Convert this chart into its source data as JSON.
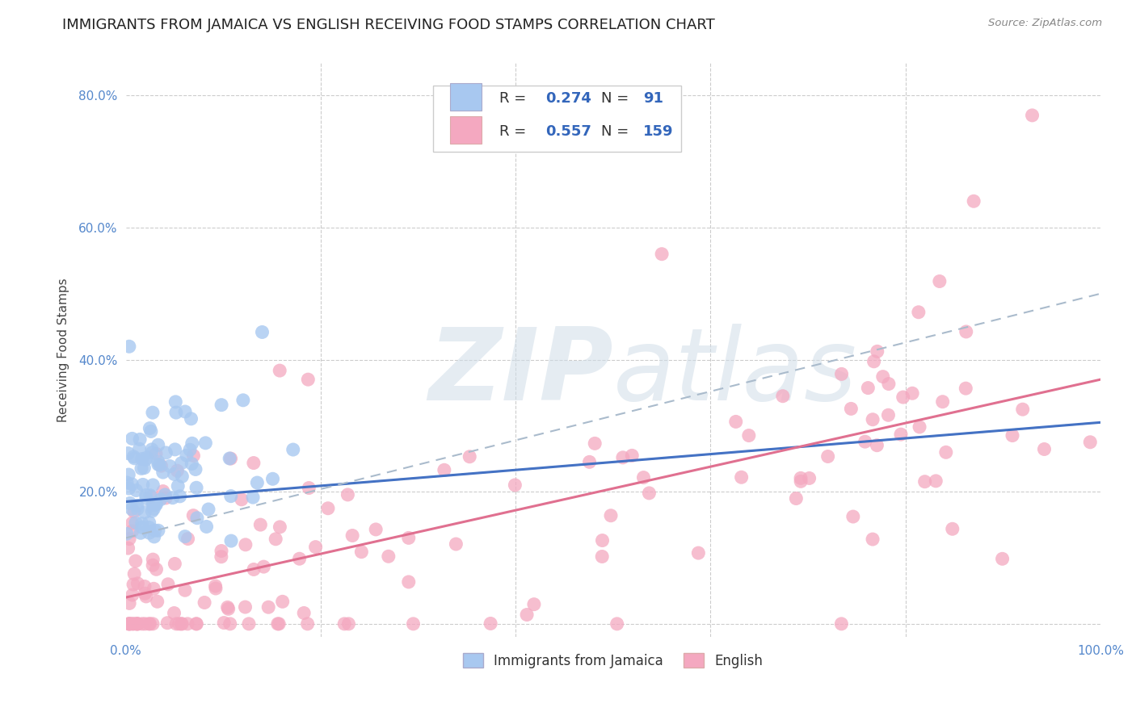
{
  "title": "IMMIGRANTS FROM JAMAICA VS ENGLISH RECEIVING FOOD STAMPS CORRELATION CHART",
  "source": "Source: ZipAtlas.com",
  "ylabel": "Receiving Food Stamps",
  "xlim": [
    0.0,
    1.0
  ],
  "ylim": [
    -0.02,
    0.85
  ],
  "xticks": [
    0.0,
    0.2,
    0.4,
    0.6,
    0.8,
    1.0
  ],
  "xticklabels": [
    "0.0%",
    "",
    "",
    "",
    "",
    "100.0%"
  ],
  "yticks": [
    0.0,
    0.2,
    0.4,
    0.6,
    0.8
  ],
  "yticklabels": [
    "",
    "20.0%",
    "40.0%",
    "60.0%",
    "80.0%"
  ],
  "legend_labels": [
    "Immigrants from Jamaica",
    "English"
  ],
  "r_jamaica": 0.274,
  "n_jamaica": 91,
  "r_english": 0.557,
  "n_english": 159,
  "blue_scatter_color": "#A8C8F0",
  "pink_scatter_color": "#F4A8C0",
  "blue_line_color": "#4472C4",
  "pink_line_color": "#E07090",
  "dashed_line_color": "#AABBCC",
  "background_color": "#FFFFFF",
  "grid_color": "#CCCCCC",
  "title_fontsize": 13,
  "axis_label_fontsize": 11,
  "tick_fontsize": 11,
  "legend_fontsize": 13,
  "watermark_color": "#D0DDE8"
}
